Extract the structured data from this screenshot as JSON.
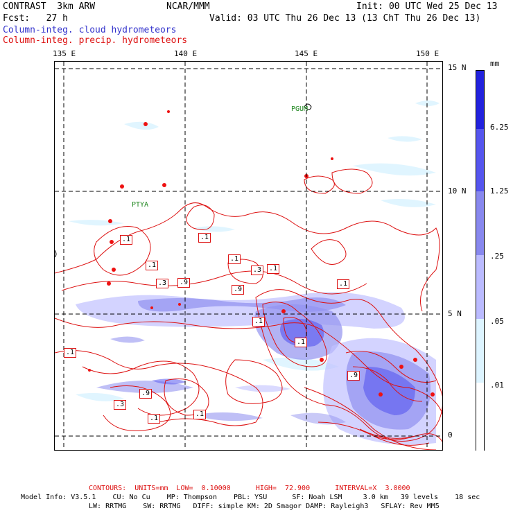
{
  "header": {
    "title": "CONTRAST  3km ARW",
    "center": "NCAR/MMM",
    "init": "Init: 00 UTC Wed 25 Dec 13",
    "fcst": "Fcst:   27 h",
    "valid": "Valid: 03 UTC Thu 26 Dec 13 (13 ChT Thu 26 Dec 13)",
    "legend_cloud": "Column-integ. cloud hydrometeors",
    "legend_precip": "Column-integ. precip. hydrometeors"
  },
  "axes": {
    "lon_labels": [
      "135 E",
      "140 E",
      "145 E",
      "150 E"
    ],
    "lat_labels": [
      "15 N",
      "10 N",
      "5 N",
      "0"
    ]
  },
  "places": [
    {
      "name": "PGUM"
    },
    {
      "name": "PTYA"
    }
  ],
  "contour_labels": [
    ".1",
    ".1",
    ".1",
    ".3",
    ".9",
    ".1",
    ".9",
    ".1",
    ".3",
    ".1",
    ".1",
    ".9",
    ".1",
    ".3",
    ".9",
    ".1",
    ".1",
    ".1"
  ],
  "colorbar": {
    "unit": "mm",
    "labels": [
      "6.25",
      "1.25",
      ".25",
      ".05",
      ".01"
    ],
    "colors": [
      "#2222dd",
      "#5555ee",
      "#8888ee",
      "#bbbbff",
      "#ddf4ff",
      "#ffffff"
    ]
  },
  "footer": {
    "contours": "CONTOURS:  UNITS=mm  LOW=  0.10000      HIGH=  72.900      INTERVAL=X  3.0000",
    "model_info": "Model Info: V3.5.1    CU: No Cu    MP: Thompson    PBL: YSU      SF: Noah LSM     3.0 km   39 levels    18 sec",
    "physics": "LW: RRTMG    SW: RRTMG   DIFF: simple KM: 2D Smagor DAMP: Rayleigh3   SFLAY: Rev MM5"
  }
}
